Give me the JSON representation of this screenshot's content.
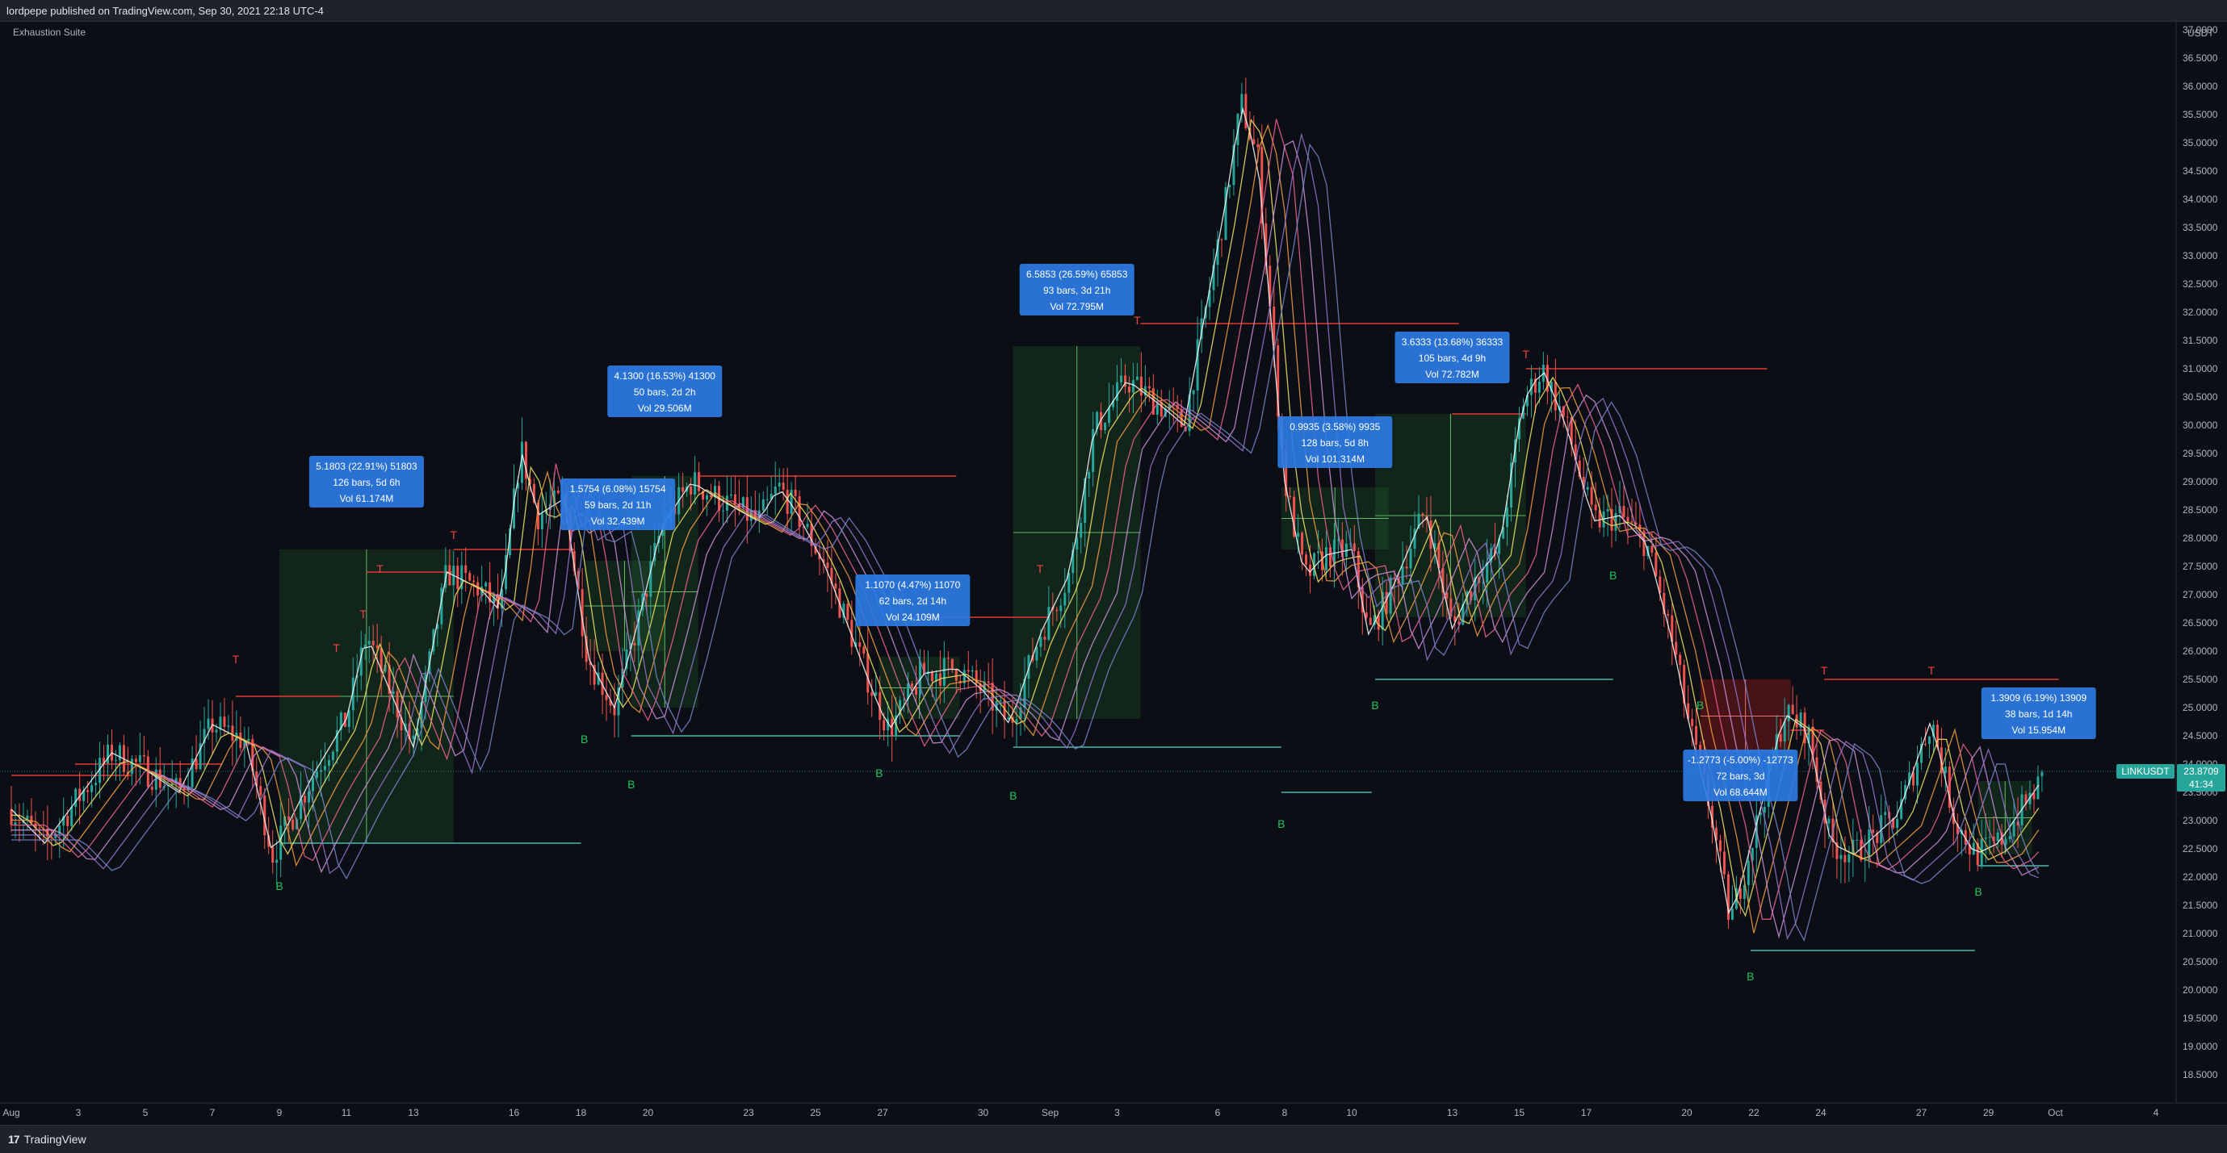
{
  "header": {
    "published_text": "lordpepe published on TradingView.com, Sep 30, 2021 22:18 UTC-4"
  },
  "indicator": {
    "name": "Exhaustion Suite"
  },
  "footer": {
    "brand": "TradingView",
    "logo_glyph": "17"
  },
  "colors": {
    "background": "#0b0e15",
    "candle_up": "#26a69a",
    "candle_down": "#ef5350",
    "signal_buy": "#22c55e",
    "signal_top": "#ef4444",
    "info_box": "#2c7be5",
    "level_line_red": "#e53935",
    "level_line_teal": "#4db6ac"
  },
  "chart_data": {
    "type": "candlestick",
    "symbol": "LINKUSDT",
    "currency": "USDT",
    "last_price": "23.8709",
    "countdown": "41:34",
    "ylim": [
      18.0,
      37.0
    ],
    "yticks": [
      "18.5000",
      "19.0000",
      "19.5000",
      "20.0000",
      "20.5000",
      "21.0000",
      "21.5000",
      "22.0000",
      "22.5000",
      "23.0000",
      "23.5000",
      "24.0000",
      "24.5000",
      "25.0000",
      "25.5000",
      "26.0000",
      "26.5000",
      "27.0000",
      "27.5000",
      "28.0000",
      "28.5000",
      "29.0000",
      "29.5000",
      "30.0000",
      "30.5000",
      "31.0000",
      "31.5000",
      "32.0000",
      "32.5000",
      "33.0000",
      "33.5000",
      "34.0000",
      "34.5000",
      "35.0000",
      "35.5000",
      "36.0000",
      "36.5000",
      "37.0000"
    ],
    "xlim": [
      0,
      63
    ],
    "xticks": [
      {
        "d": 0,
        "label": "Aug"
      },
      {
        "d": 2,
        "label": "3"
      },
      {
        "d": 4,
        "label": "5"
      },
      {
        "d": 6,
        "label": "7"
      },
      {
        "d": 8,
        "label": "9"
      },
      {
        "d": 10,
        "label": "11"
      },
      {
        "d": 12,
        "label": "13"
      },
      {
        "d": 15,
        "label": "16"
      },
      {
        "d": 17,
        "label": "18"
      },
      {
        "d": 19,
        "label": "20"
      },
      {
        "d": 22,
        "label": "23"
      },
      {
        "d": 24,
        "label": "25"
      },
      {
        "d": 26,
        "label": "27"
      },
      {
        "d": 29,
        "label": "30"
      },
      {
        "d": 31,
        "label": "Sep"
      },
      {
        "d": 33,
        "label": "3"
      },
      {
        "d": 36,
        "label": "6"
      },
      {
        "d": 38,
        "label": "8"
      },
      {
        "d": 40,
        "label": "10"
      },
      {
        "d": 43,
        "label": "13"
      },
      {
        "d": 45,
        "label": "15"
      },
      {
        "d": 47,
        "label": "17"
      },
      {
        "d": 50,
        "label": "20"
      },
      {
        "d": 52,
        "label": "22"
      },
      {
        "d": 54,
        "label": "24"
      },
      {
        "d": 57,
        "label": "27"
      },
      {
        "d": 59,
        "label": "29"
      },
      {
        "d": 61,
        "label": "Oct"
      },
      {
        "d": 64,
        "label": "4"
      }
    ],
    "price_path": [
      [
        0,
        23.2
      ],
      [
        1,
        22.6
      ],
      [
        2,
        23.4
      ],
      [
        3,
        24.2
      ],
      [
        4,
        23.9
      ],
      [
        5,
        23.5
      ],
      [
        6,
        24.7
      ],
      [
        7,
        24.4
      ],
      [
        7.8,
        22.4
      ],
      [
        9,
        23.8
      ],
      [
        10,
        24.8
      ],
      [
        10.6,
        26.3
      ],
      [
        11.3,
        25.3
      ],
      [
        12,
        24.3
      ],
      [
        13,
        27.4
      ],
      [
        14,
        27.1
      ],
      [
        14.6,
        26.7
      ],
      [
        15.2,
        29.6
      ],
      [
        15.7,
        28.4
      ],
      [
        16.5,
        28.7
      ],
      [
        17.2,
        25.9
      ],
      [
        18,
        25.0
      ],
      [
        18.7,
        26.5
      ],
      [
        19.4,
        28.2
      ],
      [
        20.3,
        29.0
      ],
      [
        21.1,
        28.7
      ],
      [
        22.3,
        28.3
      ],
      [
        22.9,
        28.9
      ],
      [
        23.4,
        28.5
      ],
      [
        24.3,
        27.5
      ],
      [
        25,
        26.4
      ],
      [
        25.7,
        25.3
      ],
      [
        26.2,
        24.6
      ],
      [
        27.2,
        25.6
      ],
      [
        28.2,
        25.7
      ],
      [
        29,
        25.3
      ],
      [
        29.8,
        24.7
      ],
      [
        30.7,
        26.3
      ],
      [
        31.6,
        27.4
      ],
      [
        32.3,
        29.9
      ],
      [
        33.3,
        30.8
      ],
      [
        34.2,
        30.4
      ],
      [
        35,
        30.0
      ],
      [
        36.2,
        33.8
      ],
      [
        36.7,
        35.7
      ],
      [
        37.2,
        34.7
      ],
      [
        37.6,
        31.8
      ],
      [
        38,
        29.0
      ],
      [
        38.6,
        27.3
      ],
      [
        39.2,
        27.7
      ],
      [
        40,
        27.8
      ],
      [
        40.5,
        26.3
      ],
      [
        41.2,
        27.1
      ],
      [
        42.2,
        28.5
      ],
      [
        43,
        26.4
      ],
      [
        43.7,
        27.3
      ],
      [
        44.4,
        27.8
      ],
      [
        45.1,
        30.4
      ],
      [
        45.7,
        31.0
      ],
      [
        46.4,
        30.0
      ],
      [
        47.2,
        28.3
      ],
      [
        48,
        28.4
      ],
      [
        48.8,
        27.9
      ],
      [
        49.6,
        26.1
      ],
      [
        50.1,
        24.6
      ],
      [
        50.7,
        23.2
      ],
      [
        51.3,
        21.2
      ],
      [
        52.2,
        23.2
      ],
      [
        52.9,
        24.9
      ],
      [
        53.6,
        24.6
      ],
      [
        54.3,
        22.6
      ],
      [
        55,
        22.4
      ],
      [
        56.3,
        23.1
      ],
      [
        57.3,
        24.8
      ],
      [
        58,
        23.0
      ],
      [
        58.6,
        22.4
      ],
      [
        59.3,
        22.6
      ],
      [
        60,
        23.2
      ],
      [
        60.7,
        23.8
      ]
    ],
    "ma_offsets": [
      0,
      -0.3,
      -0.55,
      -0.8,
      -1.05,
      -1.3,
      -1.55
    ],
    "ma_colors": [
      "#ffffff",
      "#f5e663",
      "#f59e42",
      "#f06292",
      "#ce93d8",
      "#9575cd",
      "#7986cb"
    ],
    "signals": [
      {
        "type": "B",
        "d": 8.0,
        "p": 22.0
      },
      {
        "type": "B",
        "d": 17.1,
        "p": 24.6
      },
      {
        "type": "B",
        "d": 18.5,
        "p": 23.8
      },
      {
        "type": "B",
        "d": 25.9,
        "p": 24.0
      },
      {
        "type": "B",
        "d": 29.9,
        "p": 23.6
      },
      {
        "type": "B",
        "d": 37.9,
        "p": 23.1
      },
      {
        "type": "B",
        "d": 40.7,
        "p": 25.2
      },
      {
        "type": "B",
        "d": 47.8,
        "p": 27.5
      },
      {
        "type": "B",
        "d": 50.4,
        "p": 25.2
      },
      {
        "type": "B",
        "d": 51.9,
        "p": 20.4
      },
      {
        "type": "B",
        "d": 58.7,
        "p": 21.9
      },
      {
        "type": "T",
        "d": 6.7,
        "p": 25.7
      },
      {
        "type": "T",
        "d": 9.7,
        "p": 25.9
      },
      {
        "type": "T",
        "d": 10.5,
        "p": 26.5
      },
      {
        "type": "T",
        "d": 11.0,
        "p": 27.3
      },
      {
        "type": "T",
        "d": 13.2,
        "p": 27.9
      },
      {
        "type": "T",
        "d": 30.7,
        "p": 27.3
      },
      {
        "type": "T",
        "d": 33.6,
        "p": 31.7
      },
      {
        "type": "T",
        "d": 45.2,
        "p": 31.1
      },
      {
        "type": "T",
        "d": 54.1,
        "p": 25.5
      },
      {
        "type": "T",
        "d": 57.3,
        "p": 25.5
      }
    ],
    "ranges": [
      {
        "d1": 8.0,
        "d2": 13.2,
        "p1": 22.6,
        "p2": 27.8,
        "color": "green",
        "box": {
          "l1": "5.1803 (22.91%) 51803",
          "l2": "126 bars, 5d 6h",
          "l3": "Vol 61.174M"
        },
        "bd": 10.6,
        "bp": 29.0
      },
      {
        "d1": 18.5,
        "d2": 20.5,
        "p1": 25.0,
        "p2": 29.1,
        "color": "green",
        "box": {
          "l1": "4.1300 (16.53%) 41300",
          "l2": "50 bars, 2d 2h",
          "l3": "Vol 29.506M"
        },
        "bd": 19.5,
        "bp": 30.6
      },
      {
        "d1": 17.1,
        "d2": 19.5,
        "p1": 26.0,
        "p2": 27.6,
        "color": "green",
        "box": {
          "l1": "1.5754 (6.08%) 15754",
          "l2": "59 bars, 2d 11h",
          "l3": "Vol 32.439M"
        },
        "bd": 18.1,
        "bp": 28.6
      },
      {
        "d1": 25.9,
        "d2": 28.3,
        "p1": 24.8,
        "p2": 25.9,
        "color": "green",
        "box": {
          "l1": "1.1070 (4.47%) 11070",
          "l2": "62 bars, 2d 14h",
          "l3": "Vol 24.109M"
        },
        "bd": 26.9,
        "bp": 26.9
      },
      {
        "d1": 29.9,
        "d2": 33.7,
        "p1": 24.8,
        "p2": 31.4,
        "color": "green",
        "box": {
          "l1": "6.5853 (26.59%) 65853",
          "l2": "93 bars, 3d 21h",
          "l3": "Vol 72.795M"
        },
        "bd": 31.8,
        "bp": 32.4
      },
      {
        "d1": 40.7,
        "d2": 45.2,
        "p1": 26.6,
        "p2": 30.2,
        "color": "green",
        "box": {
          "l1": "3.6333 (13.68%) 36333",
          "l2": "105 bars, 4d 9h",
          "l3": "Vol 72.782M"
        },
        "bd": 43.0,
        "bp": 31.2
      },
      {
        "d1": 37.9,
        "d2": 41.1,
        "p1": 27.8,
        "p2": 28.9,
        "color": "green",
        "box": {
          "l1": "0.9935 (3.58%) 9935",
          "l2": "128 bars, 5d 8h",
          "l3": "Vol 101.314M"
        },
        "bd": 39.5,
        "bp": 29.7
      },
      {
        "d1": 50.4,
        "d2": 53.1,
        "p1": 24.2,
        "p2": 25.5,
        "color": "red",
        "box": {
          "l1": "-1.2773 (-5.00%) -12773",
          "l2": "72 bars, 3d",
          "l3": "Vol 68.644M"
        },
        "bd": 51.6,
        "bp": 23.8
      },
      {
        "d1": 58.7,
        "d2": 60.3,
        "p1": 22.4,
        "p2": 23.7,
        "color": "green",
        "box": {
          "l1": "1.3909 (6.19%) 13909",
          "l2": "38 bars, 1d 14h",
          "l3": "Vol 15.954M"
        },
        "bd": 60.5,
        "bp": 24.9
      }
    ],
    "level_lines": [
      {
        "d1": 0,
        "d2": 3.6,
        "p": 23.8,
        "color": "red"
      },
      {
        "d1": 1.9,
        "d2": 6.3,
        "p": 24.0,
        "color": "red"
      },
      {
        "d1": 6.7,
        "d2": 9.8,
        "p": 25.2,
        "color": "red"
      },
      {
        "d1": 10.6,
        "d2": 13.2,
        "p": 27.4,
        "color": "red"
      },
      {
        "d1": 13.2,
        "d2": 16.8,
        "p": 27.8,
        "color": "red"
      },
      {
        "d1": 20.5,
        "d2": 28.2,
        "p": 29.1,
        "color": "red"
      },
      {
        "d1": 26.9,
        "d2": 31.0,
        "p": 26.6,
        "color": "red"
      },
      {
        "d1": 33.7,
        "d2": 43.2,
        "p": 31.8,
        "color": "red"
      },
      {
        "d1": 43.0,
        "d2": 45.2,
        "p": 30.2,
        "color": "red"
      },
      {
        "d1": 45.2,
        "d2": 52.4,
        "p": 31.0,
        "color": "red"
      },
      {
        "d1": 54.1,
        "d2": 61.1,
        "p": 25.5,
        "color": "red"
      },
      {
        "d1": 53.1,
        "d2": 54.1,
        "p": 24.6,
        "color": "red"
      },
      {
        "d1": 8.0,
        "d2": 17.0,
        "p": 22.6,
        "color": "teal"
      },
      {
        "d1": 18.5,
        "d2": 28.3,
        "p": 24.5,
        "color": "teal"
      },
      {
        "d1": 29.9,
        "d2": 37.9,
        "p": 24.3,
        "color": "teal"
      },
      {
        "d1": 37.9,
        "d2": 40.6,
        "p": 23.5,
        "color": "teal"
      },
      {
        "d1": 40.7,
        "d2": 47.8,
        "p": 25.5,
        "color": "teal"
      },
      {
        "d1": 51.9,
        "d2": 58.6,
        "p": 20.7,
        "color": "teal"
      },
      {
        "d1": 58.7,
        "d2": 60.8,
        "p": 22.2,
        "color": "teal"
      }
    ],
    "current_line_price": 23.8709
  }
}
